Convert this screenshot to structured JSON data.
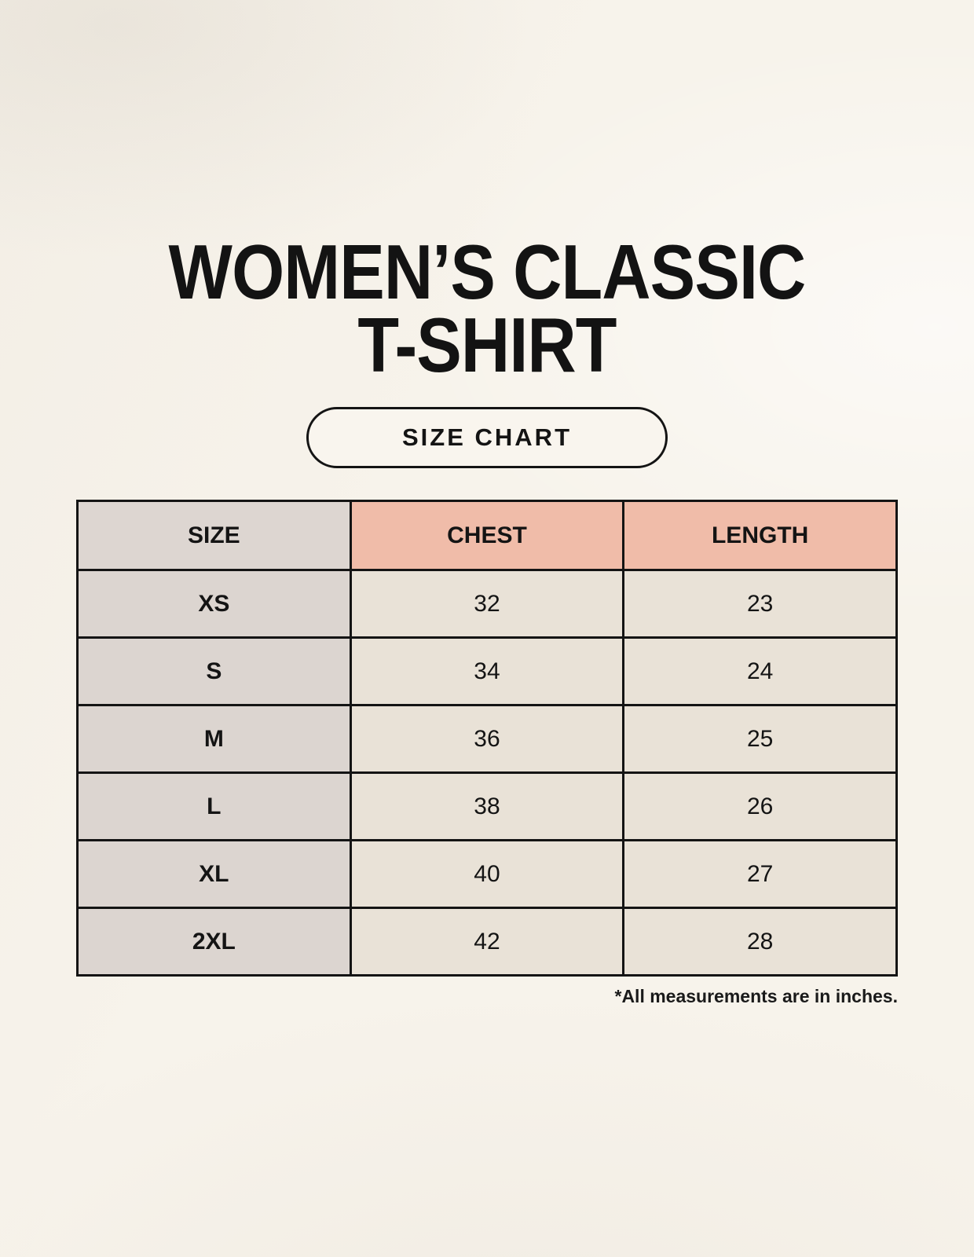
{
  "title": {
    "line1": "WOMEN’S CLASSIC",
    "line2": "T-SHIRT"
  },
  "button": {
    "label": "SIZE CHART"
  },
  "table": {
    "headers": [
      "SIZE",
      "CHEST",
      "LENGTH"
    ],
    "rows": [
      {
        "size": "XS",
        "chest": "32",
        "length": "23"
      },
      {
        "size": "S",
        "chest": "34",
        "length": "24"
      },
      {
        "size": "M",
        "chest": "36",
        "length": "25"
      },
      {
        "size": "L",
        "chest": "38",
        "length": "26"
      },
      {
        "size": "XL",
        "chest": "40",
        "length": "27"
      },
      {
        "size": "2XL",
        "chest": "42",
        "length": "28"
      }
    ]
  },
  "footnote": "*All measurements are in inches.",
  "colors": {
    "background": "#f7f3eb",
    "header_accent_pink": "#f0bca9",
    "size_column_gray": "#dcd5d0",
    "value_cell_cream": "#e9e2d7",
    "border_black": "#141414"
  }
}
